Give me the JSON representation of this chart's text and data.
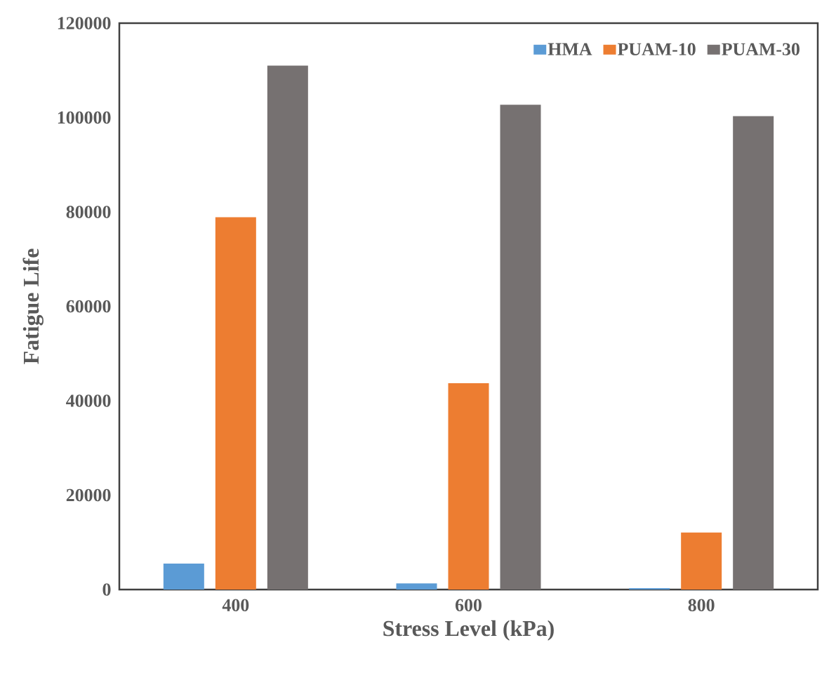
{
  "chart_data": {
    "type": "bar",
    "xlabel": "Stress Level (kPa)",
    "ylabel": "Fatigue Life",
    "categories": [
      "400",
      "600",
      "800"
    ],
    "series": [
      {
        "name": "HMA",
        "color": "#5b9bd5",
        "values": [
          5500,
          1300,
          300
        ]
      },
      {
        "name": "PUAM-10",
        "color": "#ed7d31",
        "values": [
          78900,
          43700,
          12100
        ]
      },
      {
        "name": "PUAM-30",
        "color": "#767171",
        "values": [
          111000,
          102700,
          100300
        ]
      }
    ],
    "ylim": [
      0,
      120000
    ],
    "yticks": [
      0,
      20000,
      40000,
      60000,
      80000,
      100000,
      120000
    ],
    "grid": false,
    "legend": "top right"
  }
}
